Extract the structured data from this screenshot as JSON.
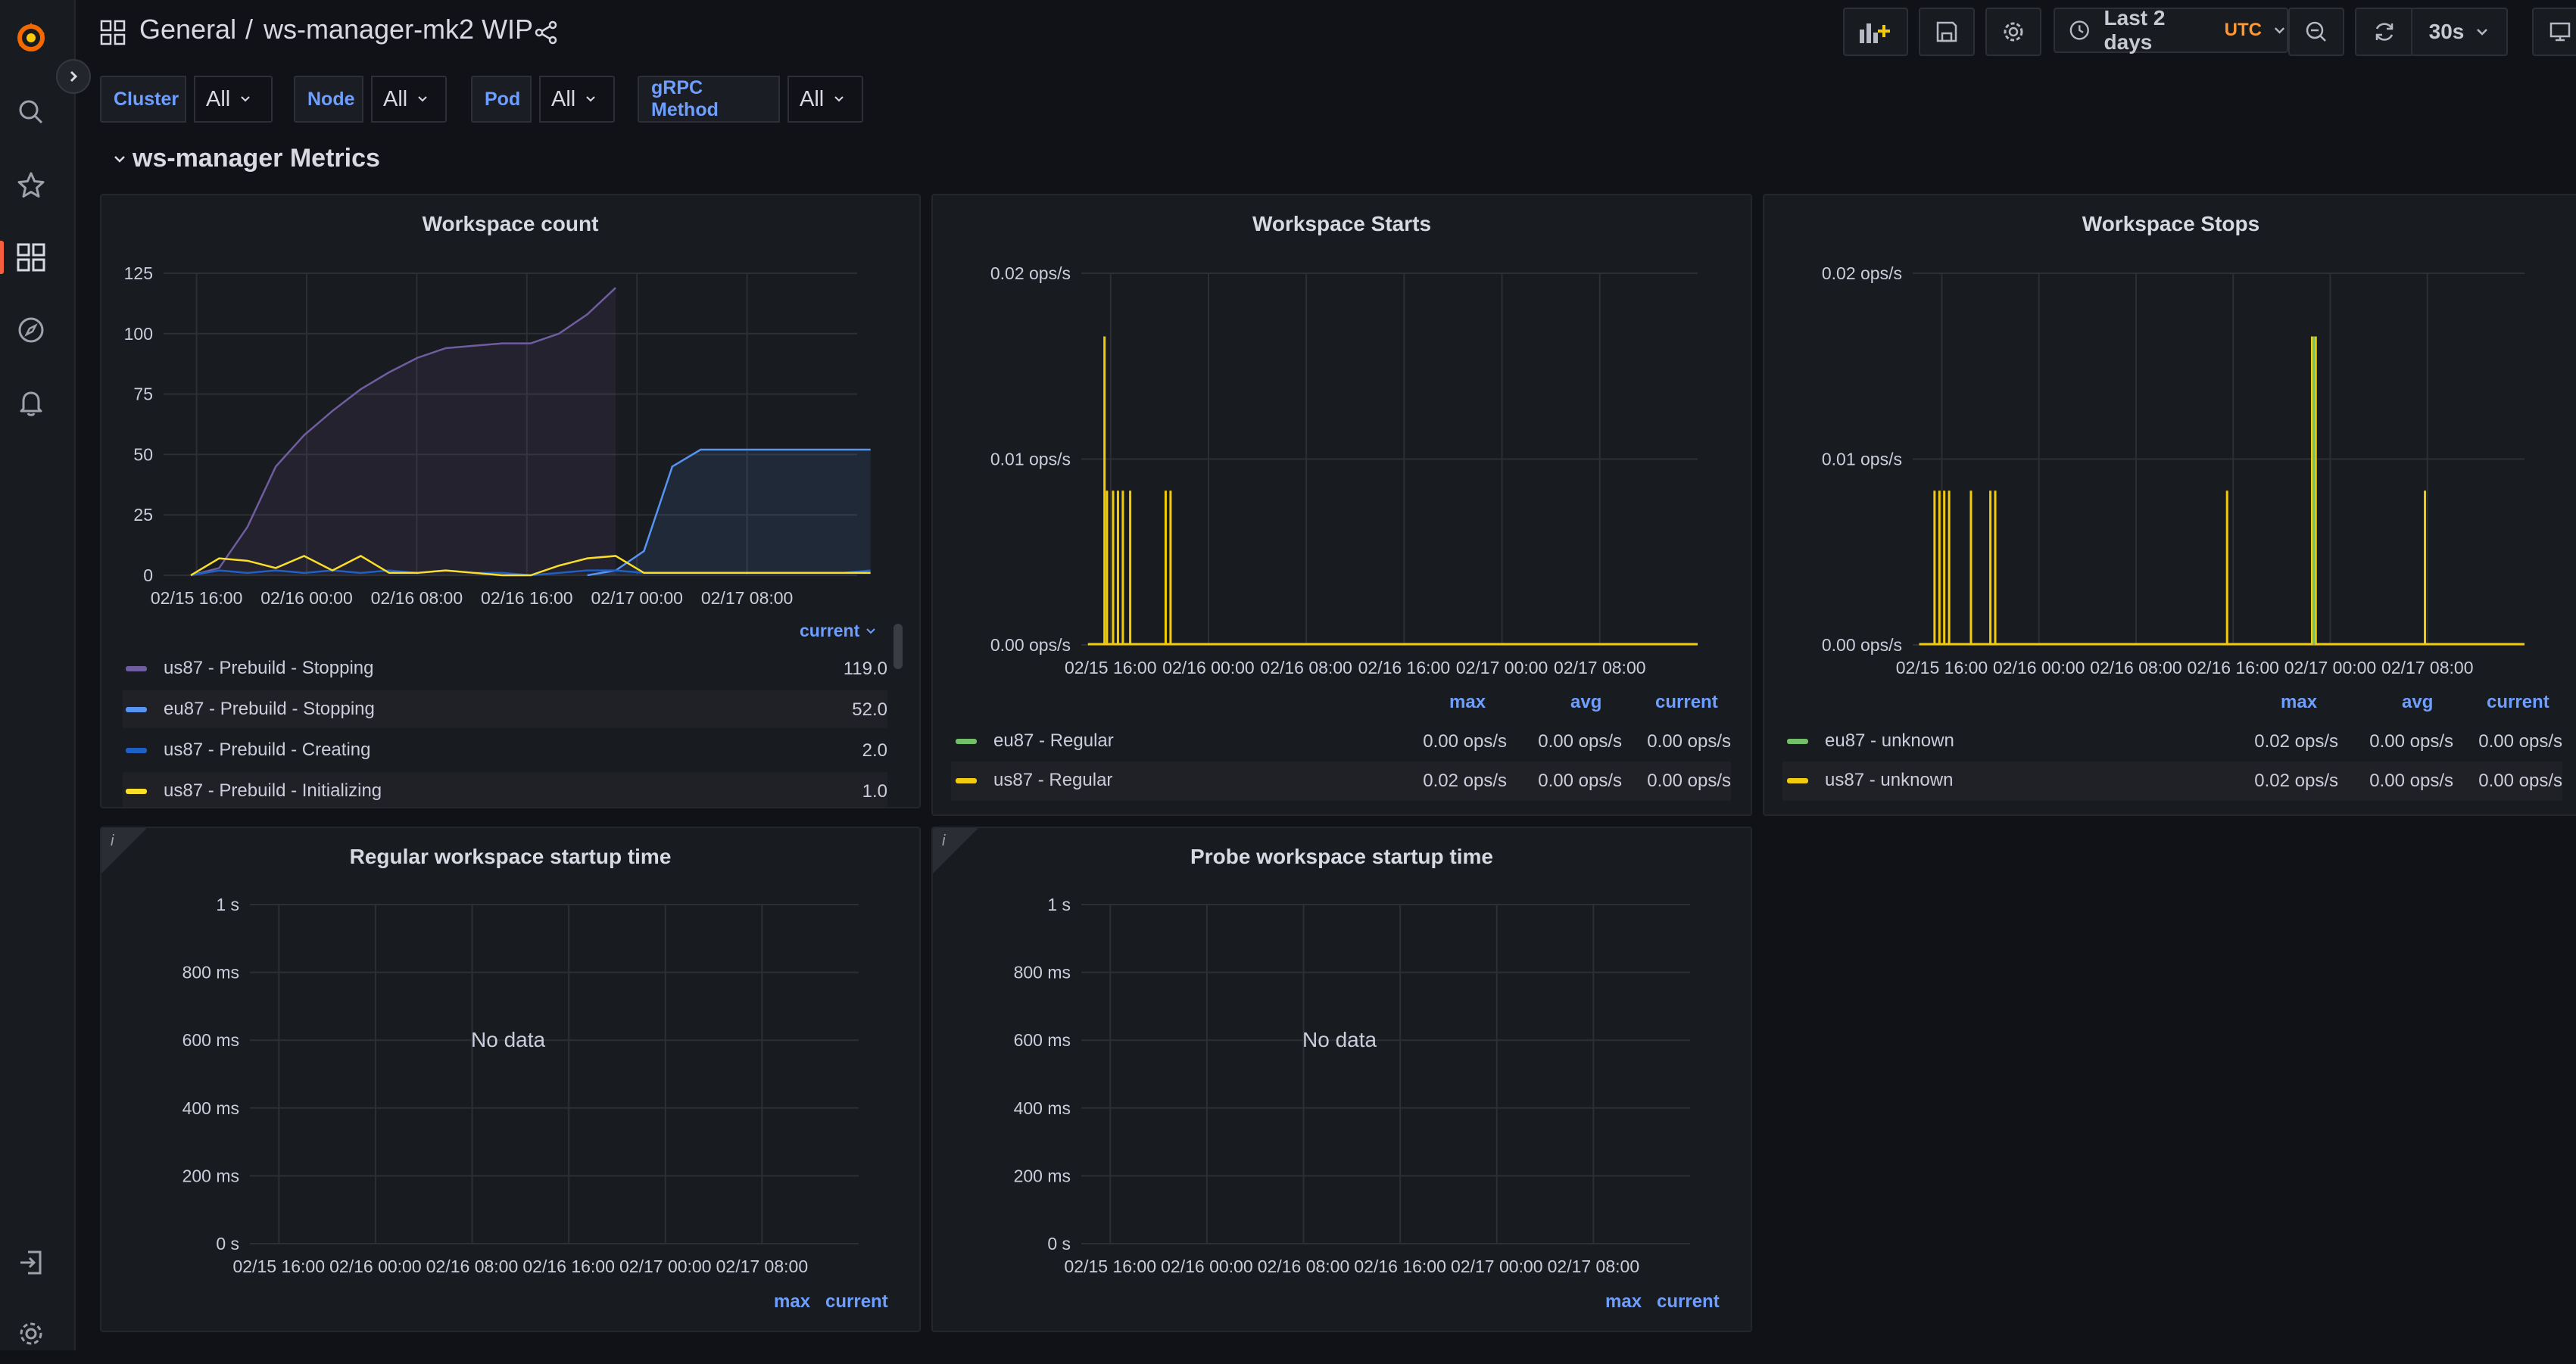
{
  "breadcrumb": {
    "folder": "General",
    "separator": "/",
    "dashboard": "ws-manager-mk2 WIP"
  },
  "toolbar": {
    "time_range": "Last 2 days",
    "timezone": "UTC",
    "refresh_interval": "30s"
  },
  "variables": [
    {
      "label": "Cluster",
      "value": "All"
    },
    {
      "label": "Node",
      "value": "All"
    },
    {
      "label": "Pod",
      "value": "All"
    },
    {
      "label": "gRPC Method",
      "value": "All"
    }
  ],
  "row": {
    "title": "ws-manager Metrics"
  },
  "colors": {
    "accent": "#f55f3e",
    "link": "#6e9fff",
    "purple": "#705da0",
    "blue": "#5794f2",
    "darkblue": "#1f60c4",
    "yellow": "#f2cc0c",
    "lightyellow": "#fade2a",
    "green": "#73bf69",
    "orange": "#ff9830"
  },
  "panels": {
    "workspace_count": {
      "title": "Workspace count",
      "legend_sort": "current",
      "legend": [
        {
          "name": "us87 - Prebuild - Stopping",
          "value": "119.0"
        },
        {
          "name": "eu87 - Prebuild - Stopping",
          "value": "52.0"
        },
        {
          "name": "us87 - Prebuild - Creating",
          "value": "2.0"
        },
        {
          "name": "us87 - Prebuild - Initializing",
          "value": "1.0"
        }
      ]
    },
    "workspace_starts": {
      "title": "Workspace Starts",
      "headers": {
        "max": "max",
        "avg": "avg",
        "current": "current"
      },
      "legend": [
        {
          "name": "eu87 - Regular",
          "max": "0.00 ops/s",
          "avg": "0.00 ops/s",
          "current": "0.00 ops/s"
        },
        {
          "name": "us87 - Regular",
          "max": "0.02 ops/s",
          "avg": "0.00 ops/s",
          "current": "0.00 ops/s"
        }
      ]
    },
    "workspace_stops": {
      "title": "Workspace Stops",
      "headers": {
        "max": "max",
        "avg": "avg",
        "current": "current"
      },
      "legend": [
        {
          "name": "eu87 - unknown",
          "max": "0.02 ops/s",
          "avg": "0.00 ops/s",
          "current": "0.00 ops/s"
        },
        {
          "name": "us87 - unknown",
          "max": "0.02 ops/s",
          "avg": "0.00 ops/s",
          "current": "0.00 ops/s"
        }
      ]
    },
    "regular_startup": {
      "title": "Regular workspace startup time",
      "info": "i",
      "no_data": "No data",
      "headers": {
        "max": "max",
        "current": "current"
      }
    },
    "probe_startup": {
      "title": "Probe workspace startup time",
      "info": "i",
      "no_data": "No data",
      "headers": {
        "max": "max",
        "current": "current"
      }
    }
  },
  "chart_data": [
    {
      "panel": "workspace_count",
      "type": "line",
      "x_ticks": [
        "02/15 16:00",
        "02/16 00:00",
        "02/16 08:00",
        "02/16 16:00",
        "02/17 00:00",
        "02/17 08:00"
      ],
      "y_ticks": [
        "0",
        "25",
        "50",
        "75",
        "100",
        "125"
      ],
      "ylim": [
        0,
        125
      ],
      "x": [
        0,
        2,
        4,
        6,
        8,
        10,
        12,
        14,
        16,
        18,
        20,
        22,
        24,
        26,
        28,
        30,
        32,
        34,
        36,
        38,
        40,
        42,
        44,
        46,
        48
      ],
      "series": [
        {
          "name": "us87 - Prebuild - Stopping",
          "color": "#705da0",
          "fill": true,
          "values": [
            0,
            3,
            20,
            45,
            58,
            68,
            77,
            84,
            90,
            94,
            95,
            96,
            96,
            100,
            108,
            119,
            null,
            null,
            null,
            null,
            null,
            null,
            null,
            null,
            null
          ]
        },
        {
          "name": "eu87 - Prebuild - Stopping",
          "color": "#5794f2",
          "fill": true,
          "values": [
            null,
            null,
            null,
            null,
            null,
            null,
            null,
            null,
            null,
            null,
            null,
            null,
            null,
            null,
            0,
            2,
            10,
            45,
            52,
            52,
            52,
            52,
            52,
            52,
            52
          ]
        },
        {
          "name": "us87 - Prebuild - Creating",
          "color": "#1f60c4",
          "fill": false,
          "values": [
            0,
            2,
            1,
            2,
            1,
            2,
            1,
            2,
            1,
            2,
            1,
            1,
            0,
            1,
            2,
            2,
            1,
            1,
            1,
            1,
            1,
            1,
            1,
            1,
            2
          ]
        },
        {
          "name": "us87 - Prebuild - Initializing",
          "color": "#fade2a",
          "fill": false,
          "values": [
            0,
            7,
            6,
            3,
            8,
            2,
            8,
            1,
            1,
            2,
            1,
            0,
            0,
            4,
            7,
            8,
            1,
            1,
            1,
            1,
            1,
            1,
            1,
            1,
            1
          ]
        }
      ]
    },
    {
      "panel": "workspace_starts",
      "type": "bar",
      "x_ticks": [
        "02/15 16:00",
        "02/16 00:00",
        "02/16 08:00",
        "02/16 16:00",
        "02/17 00:00",
        "02/17 08:00"
      ],
      "y_ticks": [
        "0.00 ops/s",
        "0.01 ops/s",
        "0.02 ops/s"
      ],
      "ylim": [
        0,
        0.02
      ],
      "series": [
        {
          "name": "us87 - Regular",
          "color": "#f2cc0c",
          "x_hours": [
            -0.5,
            -0.3,
            0.2,
            0.6,
            1.0,
            1.6,
            4.5,
            4.9
          ],
          "values": [
            0.0166,
            0.0083,
            0.0083,
            0.0083,
            0.0083,
            0.0083,
            0.0083,
            0.0083
          ]
        },
        {
          "name": "eu87 - Regular",
          "color": "#73bf69",
          "x_hours": [],
          "values": []
        }
      ]
    },
    {
      "panel": "workspace_stops",
      "type": "bar",
      "x_ticks": [
        "02/15 16:00",
        "02/16 00:00",
        "02/16 08:00",
        "02/16 16:00",
        "02/17 00:00",
        "02/17 08:00"
      ],
      "y_ticks": [
        "0.00 ops/s",
        "0.01 ops/s",
        "0.02 ops/s"
      ],
      "ylim": [
        0,
        0.02
      ],
      "series": [
        {
          "name": "us87 - unknown",
          "color": "#f2cc0c",
          "x_hours": [
            -0.6,
            -0.2,
            0.2,
            0.6,
            2.4,
            4.0,
            4.4,
            23.5,
            30.5,
            30.8,
            39.8
          ],
          "values": [
            0.0083,
            0.0083,
            0.0083,
            0.0083,
            0.0083,
            0.0083,
            0.0083,
            0.0083,
            0.0166,
            0.0166,
            0.0083
          ]
        },
        {
          "name": "eu87 - unknown",
          "color": "#73bf69",
          "x_hours": [
            30.65
          ],
          "values": [
            0.0166
          ]
        }
      ]
    },
    {
      "panel": "regular_startup",
      "type": "line",
      "x_ticks": [
        "02/15 16:00",
        "02/16 00:00",
        "02/16 08:00",
        "02/16 16:00",
        "02/17 00:00",
        "02/17 08:00"
      ],
      "y_ticks": [
        "0 s",
        "200 ms",
        "400 ms",
        "600 ms",
        "800 ms",
        "1 s"
      ],
      "series": []
    },
    {
      "panel": "probe_startup",
      "type": "line",
      "x_ticks": [
        "02/15 16:00",
        "02/16 00:00",
        "02/16 08:00",
        "02/16 16:00",
        "02/17 00:00",
        "02/17 08:00"
      ],
      "y_ticks": [
        "0 s",
        "200 ms",
        "400 ms",
        "600 ms",
        "800 ms",
        "1 s"
      ],
      "series": []
    }
  ]
}
